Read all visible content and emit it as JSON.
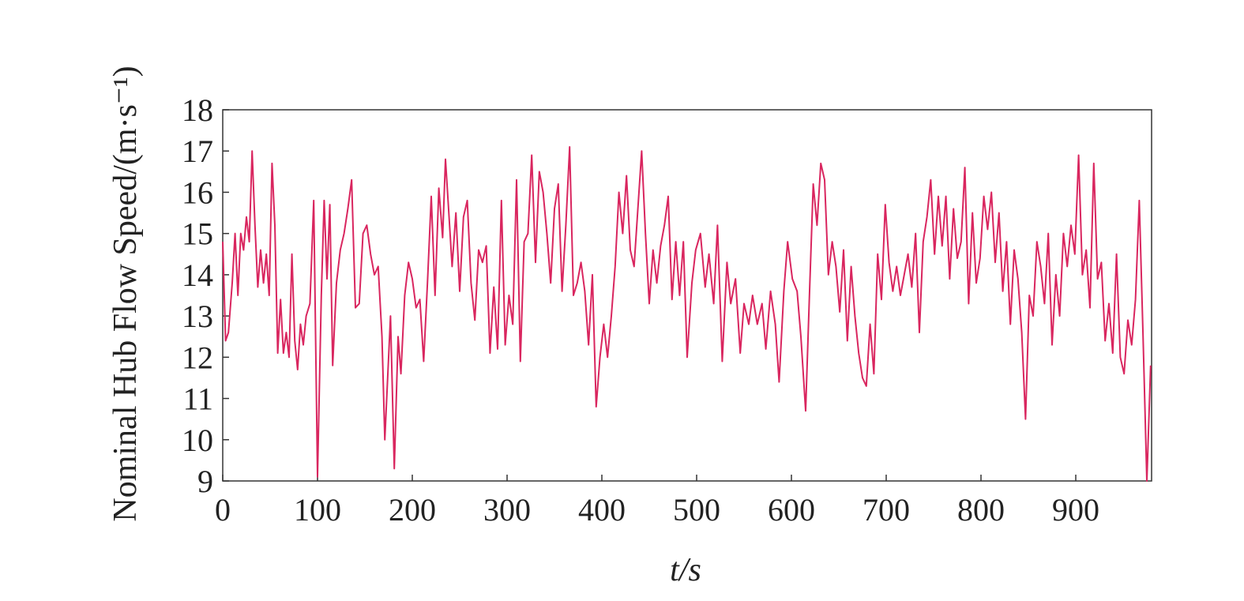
{
  "chart_data": {
    "type": "line",
    "y_label": "Nominal Hub Flow Speed/(m·s⁻¹)",
    "x_label": "t/s",
    "xlim": [
      0,
      980
    ],
    "ylim": [
      9,
      18
    ],
    "xticks": [
      0,
      100,
      200,
      300,
      400,
      500,
      600,
      700,
      800,
      900
    ],
    "yticks": [
      9,
      10,
      11,
      12,
      13,
      14,
      15,
      16,
      17,
      18
    ],
    "x": [
      0,
      3,
      6,
      10,
      13,
      16,
      19,
      22,
      25,
      28,
      31,
      34,
      37,
      40,
      43,
      46,
      49,
      52,
      55,
      58,
      61,
      64,
      67,
      70,
      73,
      76,
      79,
      82,
      85,
      88,
      92,
      96,
      100,
      104,
      107,
      110,
      113,
      116,
      120,
      124,
      128,
      132,
      136,
      140,
      144,
      148,
      152,
      156,
      160,
      164,
      168,
      171,
      174,
      177,
      181,
      185,
      188,
      192,
      196,
      200,
      204,
      208,
      212,
      216,
      220,
      224,
      228,
      232,
      235,
      238,
      242,
      246,
      250,
      254,
      258,
      262,
      266,
      270,
      274,
      278,
      282,
      286,
      290,
      294,
      298,
      302,
      306,
      310,
      314,
      318,
      322,
      326,
      330,
      334,
      338,
      342,
      346,
      350,
      354,
      358,
      362,
      366,
      370,
      374,
      378,
      382,
      386,
      390,
      394,
      398,
      402,
      406,
      410,
      414,
      418,
      422,
      426,
      430,
      434,
      438,
      442,
      446,
      450,
      454,
      458,
      462,
      466,
      470,
      474,
      478,
      482,
      486,
      490,
      495,
      499,
      504,
      509,
      513,
      518,
      522,
      527,
      532,
      536,
      541,
      546,
      550,
      555,
      559,
      564,
      569,
      573,
      578,
      583,
      587,
      592,
      596,
      601,
      606,
      610,
      615,
      619,
      623,
      627,
      631,
      635,
      639,
      643,
      647,
      651,
      655,
      659,
      663,
      667,
      671,
      675,
      679,
      683,
      687,
      691,
      695,
      699,
      703,
      707,
      711,
      715,
      719,
      723,
      727,
      731,
      735,
      739,
      743,
      747,
      751,
      755,
      759,
      763,
      767,
      771,
      775,
      779,
      783,
      787,
      791,
      795,
      799,
      803,
      807,
      811,
      815,
      819,
      823,
      827,
      831,
      835,
      839,
      843,
      847,
      851,
      855,
      859,
      863,
      867,
      871,
      875,
      879,
      883,
      887,
      891,
      895,
      899,
      903,
      907,
      911,
      915,
      919,
      923,
      927,
      931,
      935,
      939,
      943,
      947,
      951,
      955,
      959,
      963,
      967,
      971,
      975,
      979
    ],
    "series": [
      {
        "color": "#d9265f",
        "values": [
          14.8,
          12.4,
          12.6,
          13.8,
          15.0,
          13.5,
          15.0,
          14.6,
          15.4,
          14.8,
          17.0,
          15.2,
          13.7,
          14.6,
          13.8,
          14.5,
          13.5,
          16.7,
          15.2,
          12.1,
          13.4,
          12.1,
          12.6,
          12.0,
          14.5,
          12.4,
          11.7,
          12.8,
          12.3,
          13.0,
          13.3,
          15.8,
          9.1,
          13.5,
          15.8,
          13.9,
          15.7,
          11.8,
          13.8,
          14.6,
          15.0,
          15.6,
          16.3,
          13.2,
          13.3,
          15.0,
          15.2,
          14.5,
          14.0,
          14.2,
          12.5,
          10.0,
          11.5,
          13.0,
          9.3,
          12.5,
          11.6,
          13.5,
          14.3,
          13.9,
          13.2,
          13.4,
          11.9,
          13.8,
          15.9,
          13.5,
          16.1,
          14.9,
          16.8,
          15.7,
          14.2,
          15.5,
          13.6,
          15.4,
          15.8,
          13.8,
          12.9,
          14.6,
          14.3,
          14.7,
          12.1,
          13.7,
          12.2,
          15.8,
          12.3,
          13.5,
          12.8,
          16.3,
          11.9,
          14.8,
          15.0,
          16.9,
          14.3,
          16.5,
          16.0,
          15.0,
          13.8,
          15.6,
          16.2,
          13.6,
          15.2,
          17.1,
          13.5,
          13.8,
          14.3,
          13.6,
          12.3,
          14.0,
          10.8,
          12.0,
          12.8,
          12.0,
          13.0,
          14.2,
          16.0,
          15.0,
          16.4,
          14.6,
          14.2,
          15.6,
          17.0,
          15.0,
          13.3,
          14.6,
          13.8,
          14.7,
          15.2,
          15.9,
          13.4,
          14.8,
          13.5,
          14.8,
          12.0,
          13.8,
          14.6,
          15.0,
          13.7,
          14.5,
          13.3,
          15.2,
          11.9,
          14.3,
          13.3,
          13.9,
          12.1,
          13.3,
          12.8,
          13.5,
          12.8,
          13.3,
          12.2,
          13.6,
          12.8,
          11.4,
          13.6,
          14.8,
          13.9,
          13.6,
          12.5,
          10.7,
          13.5,
          16.2,
          15.2,
          16.7,
          16.3,
          14.0,
          14.8,
          14.2,
          13.1,
          14.6,
          12.4,
          14.2,
          13.0,
          12.1,
          11.5,
          11.3,
          12.8,
          11.6,
          14.5,
          13.4,
          15.7,
          14.3,
          13.6,
          14.2,
          13.5,
          14.0,
          14.5,
          13.7,
          15.0,
          12.6,
          14.8,
          15.4,
          16.3,
          14.5,
          15.9,
          14.7,
          15.9,
          13.9,
          15.6,
          14.4,
          14.8,
          16.6,
          13.3,
          15.5,
          13.8,
          14.4,
          15.9,
          15.1,
          16.0,
          14.3,
          15.5,
          13.6,
          14.8,
          12.8,
          14.6,
          13.9,
          12.6,
          10.5,
          13.5,
          13.0,
          14.8,
          14.2,
          13.3,
          15.0,
          12.3,
          14.0,
          13.0,
          15.0,
          14.2,
          15.2,
          14.5,
          16.9,
          14.0,
          14.6,
          13.2,
          16.7,
          13.9,
          14.3,
          12.4,
          13.3,
          12.1,
          14.5,
          12.0,
          11.6,
          12.9,
          12.3,
          13.4,
          15.8,
          12.5,
          9.0,
          11.8
        ]
      }
    ]
  }
}
